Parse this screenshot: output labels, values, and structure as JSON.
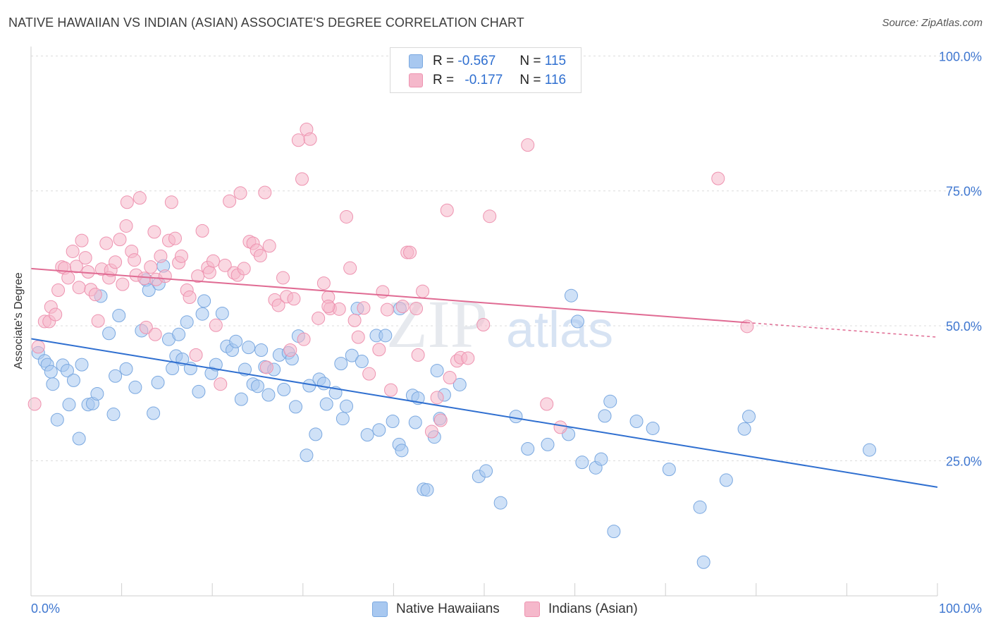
{
  "header": {
    "title": "NATIVE HAWAIIAN VS INDIAN (ASIAN) ASSOCIATE'S DEGREE CORRELATION CHART",
    "source": "Source: ZipAtlas.com"
  },
  "watermark": {
    "zip": "ZIP",
    "atlas": "atlas"
  },
  "legend": {
    "r_label": "R =",
    "n_label": "N =",
    "rows": [
      {
        "r": "-0.567",
        "n": "115",
        "color": "#a8c8f0"
      },
      {
        "r": "-0.177",
        "n": "116",
        "color": "#f5b8cb"
      }
    ]
  },
  "bottom_legend": {
    "items": [
      {
        "label": "Native Hawaiians",
        "color": "#a8c8f0"
      },
      {
        "label": "Indians (Asian)",
        "color": "#f5b8cb"
      }
    ]
  },
  "chart_data": {
    "type": "scatter",
    "title": "NATIVE HAWAIIAN VS INDIAN (ASIAN) ASSOCIATE'S DEGREE CORRELATION CHART",
    "xlabel": "",
    "ylabel": "Associate's Degree",
    "xlim": [
      0,
      100
    ],
    "ylim": [
      0,
      100
    ],
    "x_tick_labels": [
      "0.0%",
      "100.0%"
    ],
    "y_tick_labels": [
      "25.0%",
      "50.0%",
      "75.0%",
      "100.0%"
    ],
    "grid": "horizontal dashed",
    "legend_position": "top-center",
    "colors": {
      "blue": "#3a7bd5",
      "pink": "#e8729a"
    },
    "series": [
      {
        "name": "Native Hawaiians",
        "color": "#a8c8f0",
        "trend": {
          "x": [
            0,
            100
          ],
          "y": [
            47.6,
            20.1
          ],
          "color": "#2f6fd0"
        },
        "points": [
          [
            0.8,
            45
          ],
          [
            1.5,
            43.5
          ],
          [
            1.8,
            42.8
          ],
          [
            2.2,
            41.5
          ],
          [
            2.4,
            39.2
          ],
          [
            2.9,
            32.6
          ],
          [
            3.5,
            42.7
          ],
          [
            4,
            41.7
          ],
          [
            4.2,
            35.4
          ],
          [
            4.7,
            39.9
          ],
          [
            5.3,
            29.1
          ],
          [
            5.6,
            42.8
          ],
          [
            6.3,
            35.4
          ],
          [
            6.8,
            35.6
          ],
          [
            7.3,
            37.4
          ],
          [
            7.7,
            55.5
          ],
          [
            8.6,
            48.6
          ],
          [
            9.1,
            33.6
          ],
          [
            9.3,
            40.7
          ],
          [
            9.7,
            51.9
          ],
          [
            10.5,
            42
          ],
          [
            11.5,
            38.6
          ],
          [
            12.2,
            49.1
          ],
          [
            12.7,
            58.5
          ],
          [
            13,
            56.6
          ],
          [
            13.5,
            33.8
          ],
          [
            14,
            39.5
          ],
          [
            14.1,
            57.8
          ],
          [
            14.6,
            61.1
          ],
          [
            15.2,
            47.5
          ],
          [
            15.6,
            42.1
          ],
          [
            16,
            44.4
          ],
          [
            16.3,
            48.4
          ],
          [
            16.7,
            43.8
          ],
          [
            17.2,
            50.7
          ],
          [
            17.6,
            42.1
          ],
          [
            18.5,
            37.8
          ],
          [
            18.9,
            52.2
          ],
          [
            19.1,
            54.6
          ],
          [
            19.9,
            41.2
          ],
          [
            20.4,
            42.8
          ],
          [
            21.1,
            52.3
          ],
          [
            21.6,
            46.2
          ],
          [
            22.2,
            45.5
          ],
          [
            22.6,
            47.1
          ],
          [
            23.2,
            36.4
          ],
          [
            23.6,
            41.9
          ],
          [
            24,
            46
          ],
          [
            24.5,
            39.2
          ],
          [
            25,
            38.8
          ],
          [
            25.4,
            45.5
          ],
          [
            25.8,
            42.4
          ],
          [
            26.2,
            37.2
          ],
          [
            26.8,
            41.9
          ],
          [
            27.4,
            44.6
          ],
          [
            27.9,
            38.2
          ],
          [
            28.4,
            45
          ],
          [
            28.8,
            43.9
          ],
          [
            29.2,
            35
          ],
          [
            29.5,
            48.1
          ],
          [
            30.4,
            26
          ],
          [
            30.7,
            38.9
          ],
          [
            31.4,
            29.9
          ],
          [
            31.8,
            40.1
          ],
          [
            32.3,
            39.3
          ],
          [
            32.6,
            35.5
          ],
          [
            33.6,
            37.6
          ],
          [
            34.2,
            43
          ],
          [
            34.4,
            32.8
          ],
          [
            34.8,
            35.1
          ],
          [
            35.4,
            44.5
          ],
          [
            36,
            53.2
          ],
          [
            36.5,
            43.4
          ],
          [
            37.1,
            29.8
          ],
          [
            38.1,
            48.2
          ],
          [
            38.4,
            30.7
          ],
          [
            39.1,
            48.2
          ],
          [
            39.9,
            32.3
          ],
          [
            40.6,
            28
          ],
          [
            40.9,
            26.9
          ],
          [
            40.7,
            53.2
          ],
          [
            42.1,
            37.1
          ],
          [
            42.7,
            36.6
          ],
          [
            42.4,
            32.1
          ],
          [
            43.3,
            19.7
          ],
          [
            43.7,
            19.6
          ],
          [
            44.5,
            29.4
          ],
          [
            44.8,
            41.7
          ],
          [
            45.1,
            32.8
          ],
          [
            45.6,
            37.2
          ],
          [
            47.3,
            39.1
          ],
          [
            49.4,
            22.1
          ],
          [
            50.2,
            23.1
          ],
          [
            51.8,
            17.2
          ],
          [
            53.5,
            33.2
          ],
          [
            54.8,
            27.2
          ],
          [
            57,
            28
          ],
          [
            59.3,
            29.9
          ],
          [
            59.6,
            55.6
          ],
          [
            60.3,
            50.8
          ],
          [
            60.8,
            24.7
          ],
          [
            62.3,
            23.7
          ],
          [
            62.9,
            25.3
          ],
          [
            63.3,
            33.3
          ],
          [
            64.3,
            11.9
          ],
          [
            63.9,
            36
          ],
          [
            66.8,
            32.3
          ],
          [
            68.6,
            31
          ],
          [
            70.4,
            23.4
          ],
          [
            73.8,
            16.4
          ],
          [
            74.2,
            6.2
          ],
          [
            76.7,
            21.4
          ],
          [
            78.7,
            30.9
          ],
          [
            79.2,
            33.2
          ],
          [
            92.5,
            27
          ]
        ]
      },
      {
        "name": "Indians (Asian)",
        "color": "#f5b8cb",
        "trend": {
          "x": [
            0,
            79
          ],
          "y": [
            60.6,
            50.6
          ],
          "dashed_to": [
            100,
            47.9
          ],
          "color": "#e06b93"
        },
        "points": [
          [
            0.4,
            35.5
          ],
          [
            0.8,
            46.1
          ],
          [
            1.5,
            50.8
          ],
          [
            2,
            50.8
          ],
          [
            2.2,
            53.5
          ],
          [
            2.7,
            52.1
          ],
          [
            3,
            56.6
          ],
          [
            3.4,
            60.9
          ],
          [
            3.7,
            60.7
          ],
          [
            4.1,
            58.9
          ],
          [
            4.6,
            63.8
          ],
          [
            5,
            61
          ],
          [
            5.3,
            57.1
          ],
          [
            5.6,
            65.8
          ],
          [
            6,
            62.6
          ],
          [
            6.3,
            60
          ],
          [
            6.6,
            56.7
          ],
          [
            7.1,
            55.8
          ],
          [
            7.4,
            50.9
          ],
          [
            7.8,
            60.5
          ],
          [
            8.3,
            65.3
          ],
          [
            8.6,
            58.9
          ],
          [
            8.8,
            60.3
          ],
          [
            9.3,
            61.8
          ],
          [
            9.8,
            66
          ],
          [
            10.1,
            57.7
          ],
          [
            10.5,
            68.5
          ],
          [
            10.6,
            72.9
          ],
          [
            11.1,
            63.8
          ],
          [
            11.4,
            62.2
          ],
          [
            11.6,
            59.4
          ],
          [
            12,
            73.7
          ],
          [
            12.5,
            58.8
          ],
          [
            12.7,
            49.7
          ],
          [
            13.2,
            60.9
          ],
          [
            13.6,
            67.4
          ],
          [
            13.8,
            58.6
          ],
          [
            14.3,
            62.9
          ],
          [
            14.8,
            59.2
          ],
          [
            15.2,
            65.8
          ],
          [
            15.5,
            72.9
          ],
          [
            15.9,
            66.2
          ],
          [
            16.3,
            61.7
          ],
          [
            16.6,
            62.9
          ],
          [
            17.2,
            56.6
          ],
          [
            17.5,
            55.3
          ],
          [
            18.4,
            59.2
          ],
          [
            18.9,
            67.6
          ],
          [
            19.5,
            60.8
          ],
          [
            19.7,
            59.9
          ],
          [
            20.1,
            62
          ],
          [
            20.4,
            50.1
          ],
          [
            20.9,
            39.2
          ],
          [
            21.4,
            61.2
          ],
          [
            21.9,
            73.1
          ],
          [
            22.4,
            59.8
          ],
          [
            22.8,
            59.4
          ],
          [
            23.1,
            74.6
          ],
          [
            23.5,
            60.6
          ],
          [
            24.1,
            65.6
          ],
          [
            24.5,
            65.3
          ],
          [
            24.9,
            64
          ],
          [
            25.3,
            63
          ],
          [
            25.8,
            74.7
          ],
          [
            26.3,
            64.8
          ],
          [
            26.9,
            54.8
          ],
          [
            27.3,
            53.8
          ],
          [
            27.8,
            58.9
          ],
          [
            28.2,
            55.4
          ],
          [
            28.6,
            45.5
          ],
          [
            29,
            55
          ],
          [
            29.5,
            84.4
          ],
          [
            29.9,
            77.2
          ],
          [
            30.4,
            86.4
          ],
          [
            30.8,
            84.6
          ],
          [
            31.7,
            51.4
          ],
          [
            32.3,
            57.9
          ],
          [
            32.8,
            55.3
          ],
          [
            33,
            53.2
          ],
          [
            34,
            53.1
          ],
          [
            34.8,
            70.2
          ],
          [
            35.2,
            60.7
          ],
          [
            35.7,
            51
          ],
          [
            36.1,
            47.9
          ],
          [
            36.7,
            53.3
          ],
          [
            37.3,
            41.1
          ],
          [
            38.4,
            45.6
          ],
          [
            38.8,
            56.3
          ],
          [
            39.3,
            53
          ],
          [
            39.7,
            38.1
          ],
          [
            41,
            53.6
          ],
          [
            41.5,
            63.6
          ],
          [
            41.8,
            63.6
          ],
          [
            42.5,
            53.2
          ],
          [
            42.7,
            44.6
          ],
          [
            43.2,
            56.4
          ],
          [
            44.2,
            30.4
          ],
          [
            44.8,
            36.7
          ],
          [
            45.2,
            32.5
          ],
          [
            45.9,
            71.4
          ],
          [
            46.2,
            40.4
          ],
          [
            47,
            43.5
          ],
          [
            47.4,
            44.1
          ],
          [
            48.2,
            44
          ],
          [
            49.9,
            50.2
          ],
          [
            50.6,
            70.3
          ],
          [
            54.8,
            83.5
          ],
          [
            56.9,
            35.5
          ],
          [
            58.4,
            31.2
          ],
          [
            75.8,
            77.3
          ],
          [
            79,
            49.9
          ],
          [
            32.8,
            53.6
          ],
          [
            26,
            42.3
          ],
          [
            30.1,
            47.5
          ],
          [
            18.2,
            44.6
          ],
          [
            13.7,
            48.4
          ]
        ]
      }
    ]
  }
}
